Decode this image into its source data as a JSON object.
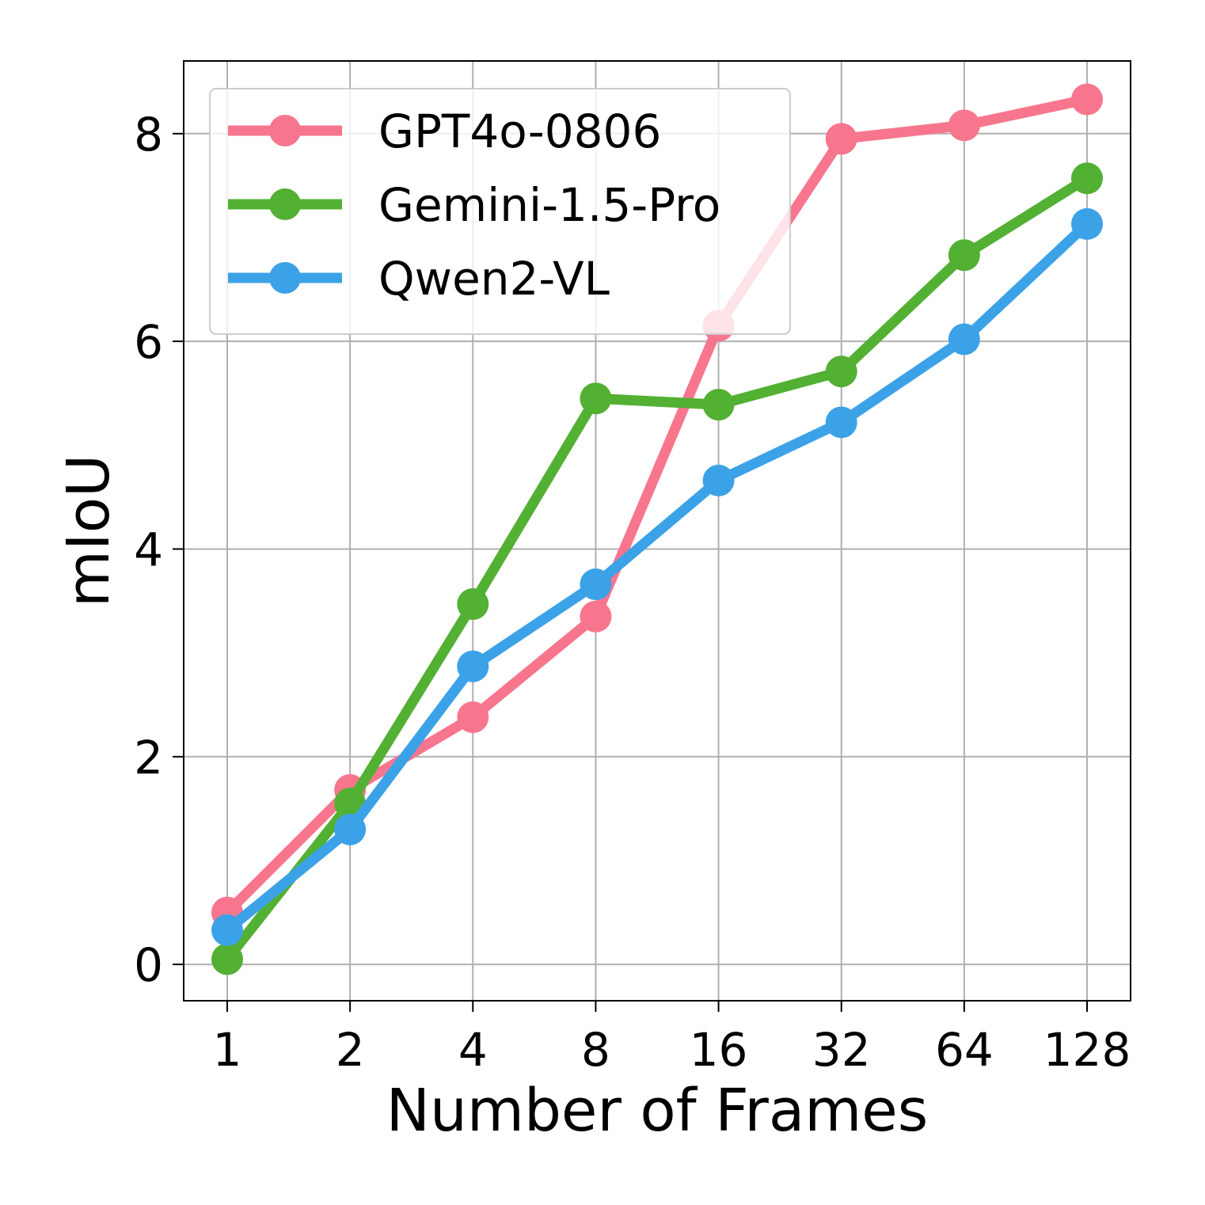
{
  "chart_data": {
    "type": "line",
    "xlabel": "Number of Frames",
    "ylabel": "mIoU",
    "x": [
      "1",
      "2",
      "4",
      "8",
      "16",
      "32",
      "64",
      "128"
    ],
    "xscale": "log2",
    "ylim": [
      -0.35,
      8.7
    ],
    "yticks": [
      0,
      2,
      4,
      6,
      8
    ],
    "grid": true,
    "legend_position": "top-left",
    "series": [
      {
        "name": "GPT4o-0806",
        "color": "#f7768e",
        "values": [
          0.5,
          1.68,
          2.38,
          3.35,
          6.15,
          7.95,
          8.08,
          8.33
        ]
      },
      {
        "name": "Gemini-1.5-Pro",
        "color": "#52b033",
        "values": [
          0.05,
          1.55,
          3.47,
          5.45,
          5.39,
          5.71,
          6.83,
          7.57
        ]
      },
      {
        "name": "Qwen2-VL",
        "color": "#3ca2e8",
        "values": [
          0.33,
          1.3,
          2.87,
          3.66,
          4.66,
          5.22,
          6.02,
          7.13
        ]
      }
    ]
  }
}
